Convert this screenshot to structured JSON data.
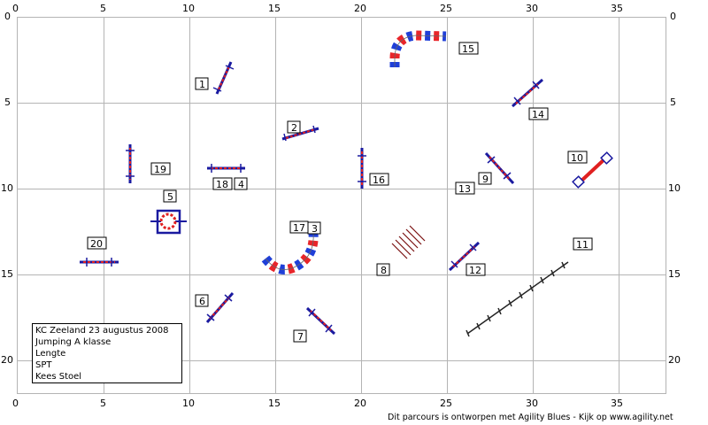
{
  "axes": {
    "x_ticks": [
      "0",
      "5",
      "10",
      "15",
      "20",
      "25",
      "30",
      "35"
    ],
    "y_ticks": [
      "0",
      "5",
      "10",
      "15",
      "20"
    ]
  },
  "info_box": {
    "lines": [
      "KC Zeeland 23 augustus 2008",
      "Jumping A klasse",
      "Lengte",
      "SPT",
      "Kees Stoel"
    ]
  },
  "footer": "Dit parcours is ontworpen met Agility Blues - Kijk op www.agility.net",
  "labels": {
    "n1": "1",
    "n2": "2",
    "n3": "3",
    "n4": "4",
    "n5": "5",
    "n6": "6",
    "n7": "7",
    "n8": "8",
    "n9": "9",
    "n10": "10",
    "n11": "11",
    "n12": "12",
    "n13": "13",
    "n14": "14",
    "n15": "15",
    "n16": "16",
    "n17": "17",
    "n18": "18",
    "n19": "19",
    "n20": "20"
  },
  "colors": {
    "grid": "#b4b4b4",
    "pole_red": "#e02020",
    "wing_blue": "#1a1aa0",
    "tunnel_blue": "#1f3fd8",
    "tunnel_red": "#e8252a",
    "weave": "#7a1010"
  }
}
